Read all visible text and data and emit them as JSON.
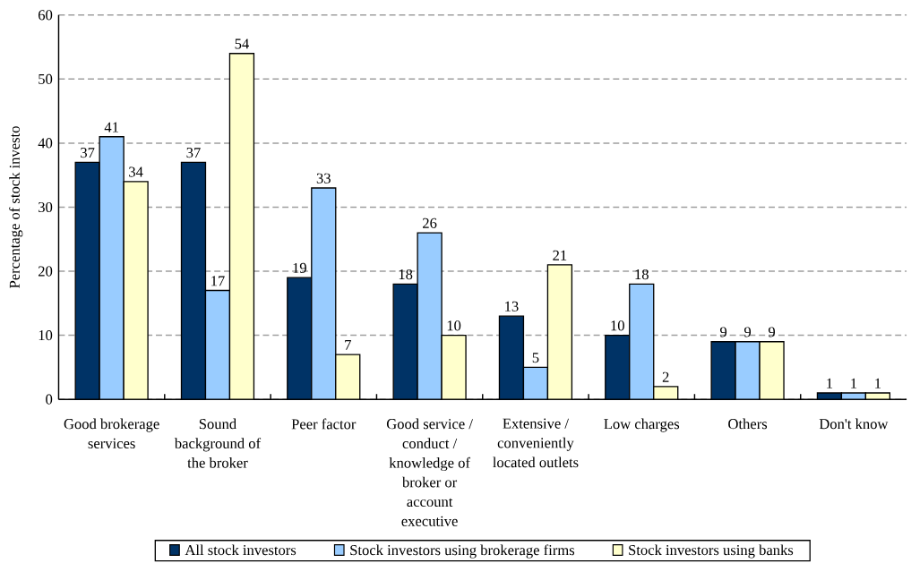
{
  "chart_data": {
    "type": "bar",
    "ylabel": "Percentage of stock investo",
    "categories": [
      "Good brokerage services",
      "Sound background of the broker",
      "Peer factor",
      "Good service / conduct / knowledge of broker or account executive",
      "Extensive / conveniently located outlets",
      "Low charges",
      "Others",
      "Don't know"
    ],
    "series": [
      {
        "name": "All stock investors",
        "color": "#003366",
        "values": [
          37,
          37,
          19,
          18,
          13,
          10,
          9,
          1
        ]
      },
      {
        "name": "Stock investors using brokerage firms",
        "color": "#99ccff",
        "values": [
          41,
          17,
          33,
          26,
          5,
          18,
          9,
          1
        ]
      },
      {
        "name": "Stock investors using banks",
        "color": "#ffffcc",
        "values": [
          34,
          54,
          7,
          10,
          21,
          2,
          9,
          1
        ]
      }
    ],
    "ylim": [
      0,
      60
    ],
    "yticks": [
      0,
      10,
      20,
      30,
      40,
      50,
      60
    ],
    "grid": "y",
    "legend": "bottom",
    "data_labels": true
  }
}
